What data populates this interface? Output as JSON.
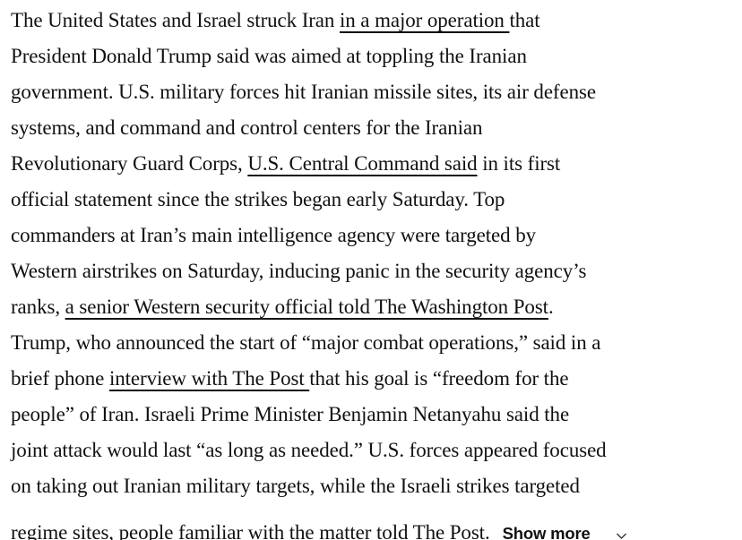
{
  "colors": {
    "text": "#111111",
    "background": "#ffffff",
    "link_underline": "#111111"
  },
  "article": {
    "lines": [
      {
        "segments": [
          {
            "text": "The United States and Israel struck Iran ",
            "link": false
          },
          {
            "text": "in a major operation ",
            "link": true
          },
          {
            "text": "that",
            "link": false
          }
        ]
      },
      {
        "segments": [
          {
            "text": "President Donald Trump said was aimed at toppling the Iranian",
            "link": false
          }
        ]
      },
      {
        "segments": [
          {
            "text": "government. U.S. military forces hit Iranian missile sites, its air defense",
            "link": false
          }
        ]
      },
      {
        "segments": [
          {
            "text": "systems, and command and control centers for the Iranian",
            "link": false
          }
        ]
      },
      {
        "segments": [
          {
            "text": "Revolutionary Guard Corps, ",
            "link": false
          },
          {
            "text": "U.S. Central Command said",
            "link": true
          },
          {
            "text": " in its first",
            "link": false
          }
        ]
      },
      {
        "segments": [
          {
            "text": "official statement since the strikes began early Saturday. Top",
            "link": false
          }
        ]
      },
      {
        "segments": [
          {
            "text": "commanders at Iran’s main intelligence agency were targeted by",
            "link": false
          }
        ]
      },
      {
        "segments": [
          {
            "text": "Western airstrikes on Saturday, inducing panic in the security agency’s",
            "link": false
          }
        ]
      },
      {
        "segments": [
          {
            "text": "ranks, ",
            "link": false
          },
          {
            "text": "a senior Western security official told The Washington Post",
            "link": true
          },
          {
            "text": ".",
            "link": false
          }
        ]
      },
      {
        "segments": [
          {
            "text": "Trump, who announced the start of “major combat operations,” said in a",
            "link": false
          }
        ]
      },
      {
        "segments": [
          {
            "text": "brief phone ",
            "link": false
          },
          {
            "text": "interview with The Post ",
            "link": true
          },
          {
            "text": "that his goal is “freedom for the",
            "link": false
          }
        ]
      },
      {
        "segments": [
          {
            "text": "people” of Iran. Israeli Prime Minister Benjamin Netanyahu said the",
            "link": false
          }
        ]
      },
      {
        "segments": [
          {
            "text": "joint attack would last “as long as needed.” U.S. forces appeared focused",
            "link": false
          }
        ]
      },
      {
        "segments": [
          {
            "text": "on taking out Iranian military targets, while the Israeli strikes targeted",
            "link": false
          }
        ]
      },
      {
        "segments": [
          {
            "text": "regime sites, people familiar with the matter ",
            "link": false
          },
          {
            "text": "told The Post",
            "link": true
          },
          {
            "text": ".",
            "link": false
          }
        ]
      }
    ],
    "show_more_label": "Show more",
    "show_more_icon": "chevron-down"
  }
}
